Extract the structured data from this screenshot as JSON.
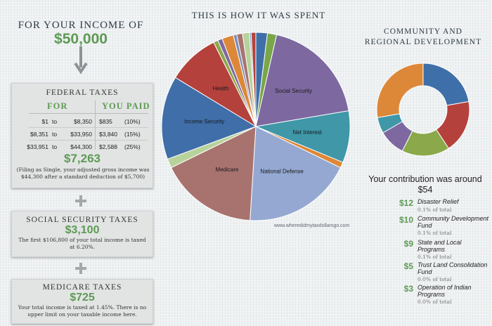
{
  "income": {
    "title": "FOR YOUR INCOME OF",
    "amount": "$50,000"
  },
  "federal": {
    "title": "FEDERAL TAXES",
    "col_for": "FOR",
    "col_paid": "YOU PAID",
    "brackets": [
      {
        "from": "$1",
        "to_word": "to",
        "to": "$8,350",
        "paid": "$835",
        "rate": "(10%)"
      },
      {
        "from": "$8,351",
        "to_word": "to",
        "to": "$33,950",
        "paid": "$3,840",
        "rate": "(15%)"
      },
      {
        "from": "$33,951",
        "to_word": "to",
        "to": "$44,300",
        "paid": "$2,588",
        "rate": "(25%)"
      }
    ],
    "total": "$7,263",
    "note": "(Filing as Single, your adjusted gross income was $44,300 after a standard deduction of $5,700)"
  },
  "social_security": {
    "title": "SOCIAL SECURITY TAXES",
    "amount": "$3,100",
    "note": "The first $106,800 of your total income is taxed at 6.20%."
  },
  "medicare": {
    "title": "MEDICARE TAXES",
    "amount": "$725",
    "note": "Your total income is taxed at 1.45%. There is no upper limit on your taxable income here."
  },
  "community": {
    "title_line1": "COMMUNITY AND",
    "title_line2": "REGIONAL DEVELOPMENT",
    "contrib_line1": "Your contribution was around",
    "contrib_line2": "$54",
    "items": [
      {
        "amount": "$12",
        "name": "Disaster Relief",
        "pct": "0.1% of total"
      },
      {
        "amount": "$10",
        "name": "Community Development Fund",
        "pct": "0.1% of total"
      },
      {
        "amount": "$9",
        "name": "State and Local Programs",
        "pct": "0.1% of total"
      },
      {
        "amount": "$5",
        "name": "Trust Land Consolidation Fund",
        "pct": "0.0% of total"
      },
      {
        "amount": "$3",
        "name": "Operation of Indian Programs",
        "pct": "0.0% of total"
      }
    ]
  },
  "source": "www.wheredidmytaxdollarsgo.com",
  "chart_data": [
    {
      "type": "pie",
      "title": "THIS IS HOW IT WAS SPENT",
      "slices": [
        {
          "label": "",
          "value": 2.0,
          "color": "#3f6fa8"
        },
        {
          "label": "",
          "value": 1.6,
          "color": "#7aa64a"
        },
        {
          "label": "Social Security",
          "value": 19.0,
          "color": "#7d68a0"
        },
        {
          "label": "Net Interest",
          "value": 9.0,
          "color": "#3f97a8"
        },
        {
          "label": "",
          "value": 1.0,
          "color": "#dd8838"
        },
        {
          "label": "National Defense",
          "value": 19.0,
          "color": "#94a8d2"
        },
        {
          "label": "Medicare",
          "value": 17.0,
          "color": "#a8736f"
        },
        {
          "label": "",
          "value": 1.6,
          "color": "#b7d29a"
        },
        {
          "label": "Income Security",
          "value": 14.5,
          "color": "#3f6ea8"
        },
        {
          "label": "Health",
          "value": 9.0,
          "color": "#b5413c"
        },
        {
          "label": "",
          "value": 0.8,
          "color": "#8ba84a"
        },
        {
          "label": "",
          "value": 0.8,
          "color": "#7d68a0"
        },
        {
          "label": "",
          "value": 2.0,
          "color": "#dd8838"
        },
        {
          "label": "",
          "value": 0.6,
          "color": "#7d8fb8"
        },
        {
          "label": "",
          "value": 1.0,
          "color": "#a8736f"
        },
        {
          "label": "",
          "value": 1.2,
          "color": "#b7d29a"
        },
        {
          "label": "",
          "value": 0.3,
          "color": "#7aa6c8"
        },
        {
          "label": "",
          "value": 0.8,
          "color": "#b5413c"
        }
      ]
    },
    {
      "type": "pie",
      "title": "COMMUNITY AND REGIONAL DEVELOPMENT",
      "slices": [
        {
          "label": "",
          "value": 12,
          "color": "#3f6fa8"
        },
        {
          "label": "",
          "value": 10,
          "color": "#b5413c"
        },
        {
          "label": "",
          "value": 9,
          "color": "#8ba84a"
        },
        {
          "label": "",
          "value": 5,
          "color": "#7d68a0"
        },
        {
          "label": "",
          "value": 3,
          "color": "#3f97a8"
        },
        {
          "label": "",
          "value": 15,
          "color": "#dd8838"
        }
      ]
    }
  ]
}
